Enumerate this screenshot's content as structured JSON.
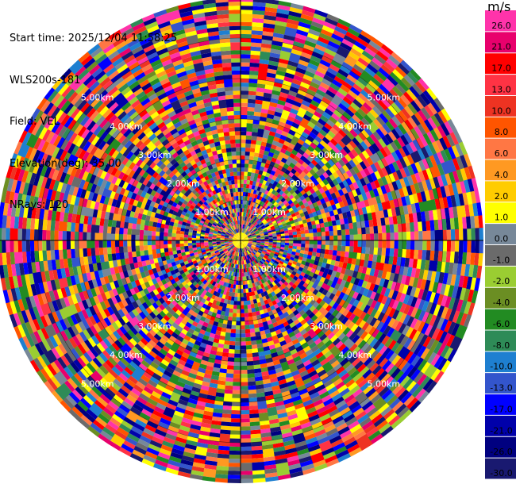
{
  "info": {
    "start_time": "Start time: 2025/12/04 11:58:25",
    "instrument": "WLS200s-181",
    "field": "Field: VEL",
    "elevation": "Elevation(deg): 35.00",
    "nrays": "NRays: 120"
  },
  "chart_data": {
    "type": "heatmap",
    "projection": "polar-ppi",
    "n_rays": 120,
    "n_gates": 60,
    "max_range_km": 6.0,
    "range_ring_labels": [
      "1.00km",
      "2.00km",
      "3.00km",
      "4.00km",
      "5.00km"
    ],
    "range_ring_values_km": [
      1,
      2,
      3,
      4,
      5
    ],
    "colorbar": {
      "title": "m/s",
      "ticks": [
        "26.0",
        "21.0",
        "17.0",
        "13.0",
        "10.0",
        "8.0",
        "6.0",
        "4.0",
        "2.0",
        "1.0",
        "0.0",
        "-1.0",
        "-2.0",
        "-4.0",
        "-6.0",
        "-8.0",
        "-10.0",
        "-13.0",
        "-17.0",
        "-21.0",
        "-26.0",
        "-30.0"
      ],
      "colors": [
        "#ff33aa",
        "#e8006c",
        "#ff0000",
        "#ff3344",
        "#ee3322",
        "#ff5500",
        "#ff7744",
        "#ff9922",
        "#ffcc00",
        "#ffff00",
        "#778899",
        "#6b6b6b",
        "#9acd32",
        "#6b8e23",
        "#228b22",
        "#2e8b57",
        "#1e7fd0",
        "#3355cc",
        "#0000ff",
        "#0000aa",
        "#000080",
        "#191970"
      ]
    }
  }
}
